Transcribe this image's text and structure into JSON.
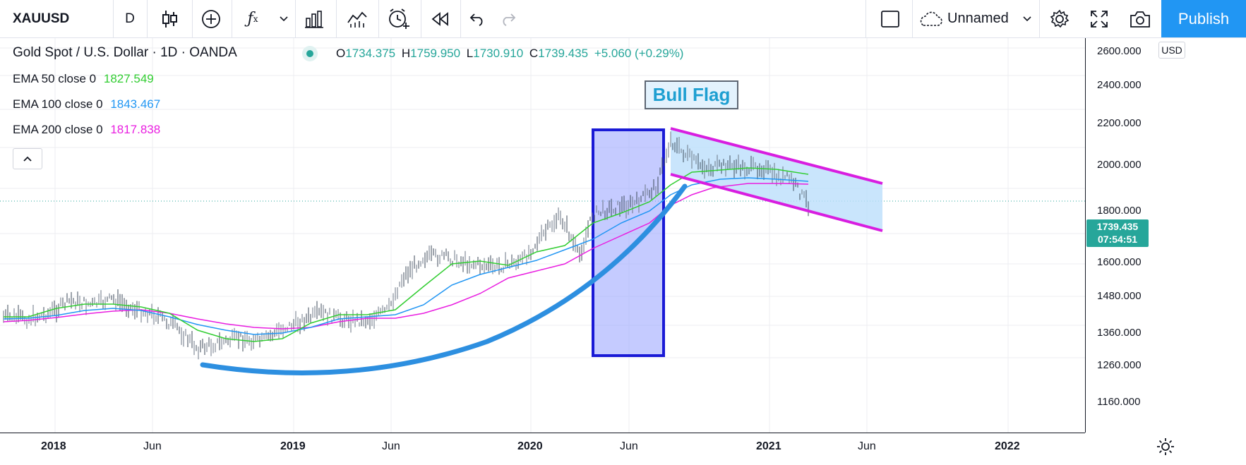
{
  "toolbar": {
    "symbol": "XAUUSD",
    "interval": "D",
    "layout_name": "Unnamed",
    "publish_label": "Publish"
  },
  "legend": {
    "title": "Gold Spot / U.S. Dollar · 1D · OANDA",
    "o_label": "O",
    "o_value": "1734.375",
    "h_label": "H",
    "h_value": "1759.950",
    "l_label": "L",
    "l_value": "1730.910",
    "c_label": "C",
    "c_value": "1739.435",
    "change": "+5.060 (+0.29%)",
    "ema50_label": "EMA 50 close 0",
    "ema50_value": "1827.549",
    "ema100_label": "EMA 100 close 0",
    "ema100_value": "1843.467",
    "ema200_label": "EMA 200 close 0",
    "ema200_value": "1817.838",
    "colors": {
      "ema50": "#32cd32",
      "ema100": "#2196f3",
      "ema200": "#e91ee0",
      "up": "#26a69a"
    }
  },
  "annotation": {
    "text": "Bull Flag"
  },
  "price_axis": {
    "currency": "USD",
    "labels": [
      "2600.000",
      "2400.000",
      "2200.000",
      "2000.000",
      "1800.000",
      "1600.000",
      "1480.000",
      "1360.000",
      "1260.000",
      "1160.000"
    ],
    "last_price": "1739.435",
    "countdown": "07:54:51"
  },
  "time_axis": {
    "labels": [
      "2018",
      "Jun",
      "2019",
      "Jun",
      "2020",
      "Jun",
      "2021",
      "Jun",
      "2022"
    ]
  }
}
